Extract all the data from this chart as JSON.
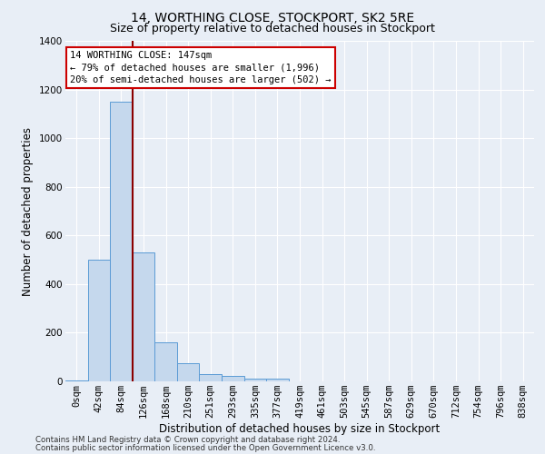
{
  "title": "14, WORTHING CLOSE, STOCKPORT, SK2 5RE",
  "subtitle": "Size of property relative to detached houses in Stockport",
  "xlabel": "Distribution of detached houses by size in Stockport",
  "ylabel": "Number of detached properties",
  "footer_line1": "Contains HM Land Registry data © Crown copyright and database right 2024.",
  "footer_line2": "Contains public sector information licensed under the Open Government Licence v3.0.",
  "annotation_line1": "14 WORTHING CLOSE: 147sqm",
  "annotation_line2": "← 79% of detached houses are smaller (1,996)",
  "annotation_line3": "20% of semi-detached houses are larger (502) →",
  "bar_labels": [
    "0sqm",
    "42sqm",
    "84sqm",
    "126sqm",
    "168sqm",
    "210sqm",
    "251sqm",
    "293sqm",
    "335sqm",
    "377sqm",
    "419sqm",
    "461sqm",
    "503sqm",
    "545sqm",
    "587sqm",
    "629sqm",
    "670sqm",
    "712sqm",
    "754sqm",
    "796sqm",
    "838sqm"
  ],
  "bar_values": [
    5,
    500,
    1150,
    530,
    160,
    75,
    30,
    22,
    12,
    10,
    0,
    0,
    0,
    0,
    0,
    0,
    0,
    0,
    0,
    0,
    0
  ],
  "bar_color": "#c5d8ed",
  "bar_edge_color": "#5b9bd5",
  "red_line_color": "#8b0000",
  "red_line_x": 2.5,
  "ylim": [
    0,
    1400
  ],
  "yticks": [
    0,
    200,
    400,
    600,
    800,
    1000,
    1200,
    1400
  ],
  "bg_color": "#e8eef6",
  "plot_bg_color": "#e8eef6",
  "grid_color": "#c8d4e4",
  "title_fontsize": 10,
  "subtitle_fontsize": 9,
  "axis_label_fontsize": 8.5,
  "tick_fontsize": 7.5,
  "annotation_fontsize": 7.5,
  "footer_fontsize": 6.2
}
